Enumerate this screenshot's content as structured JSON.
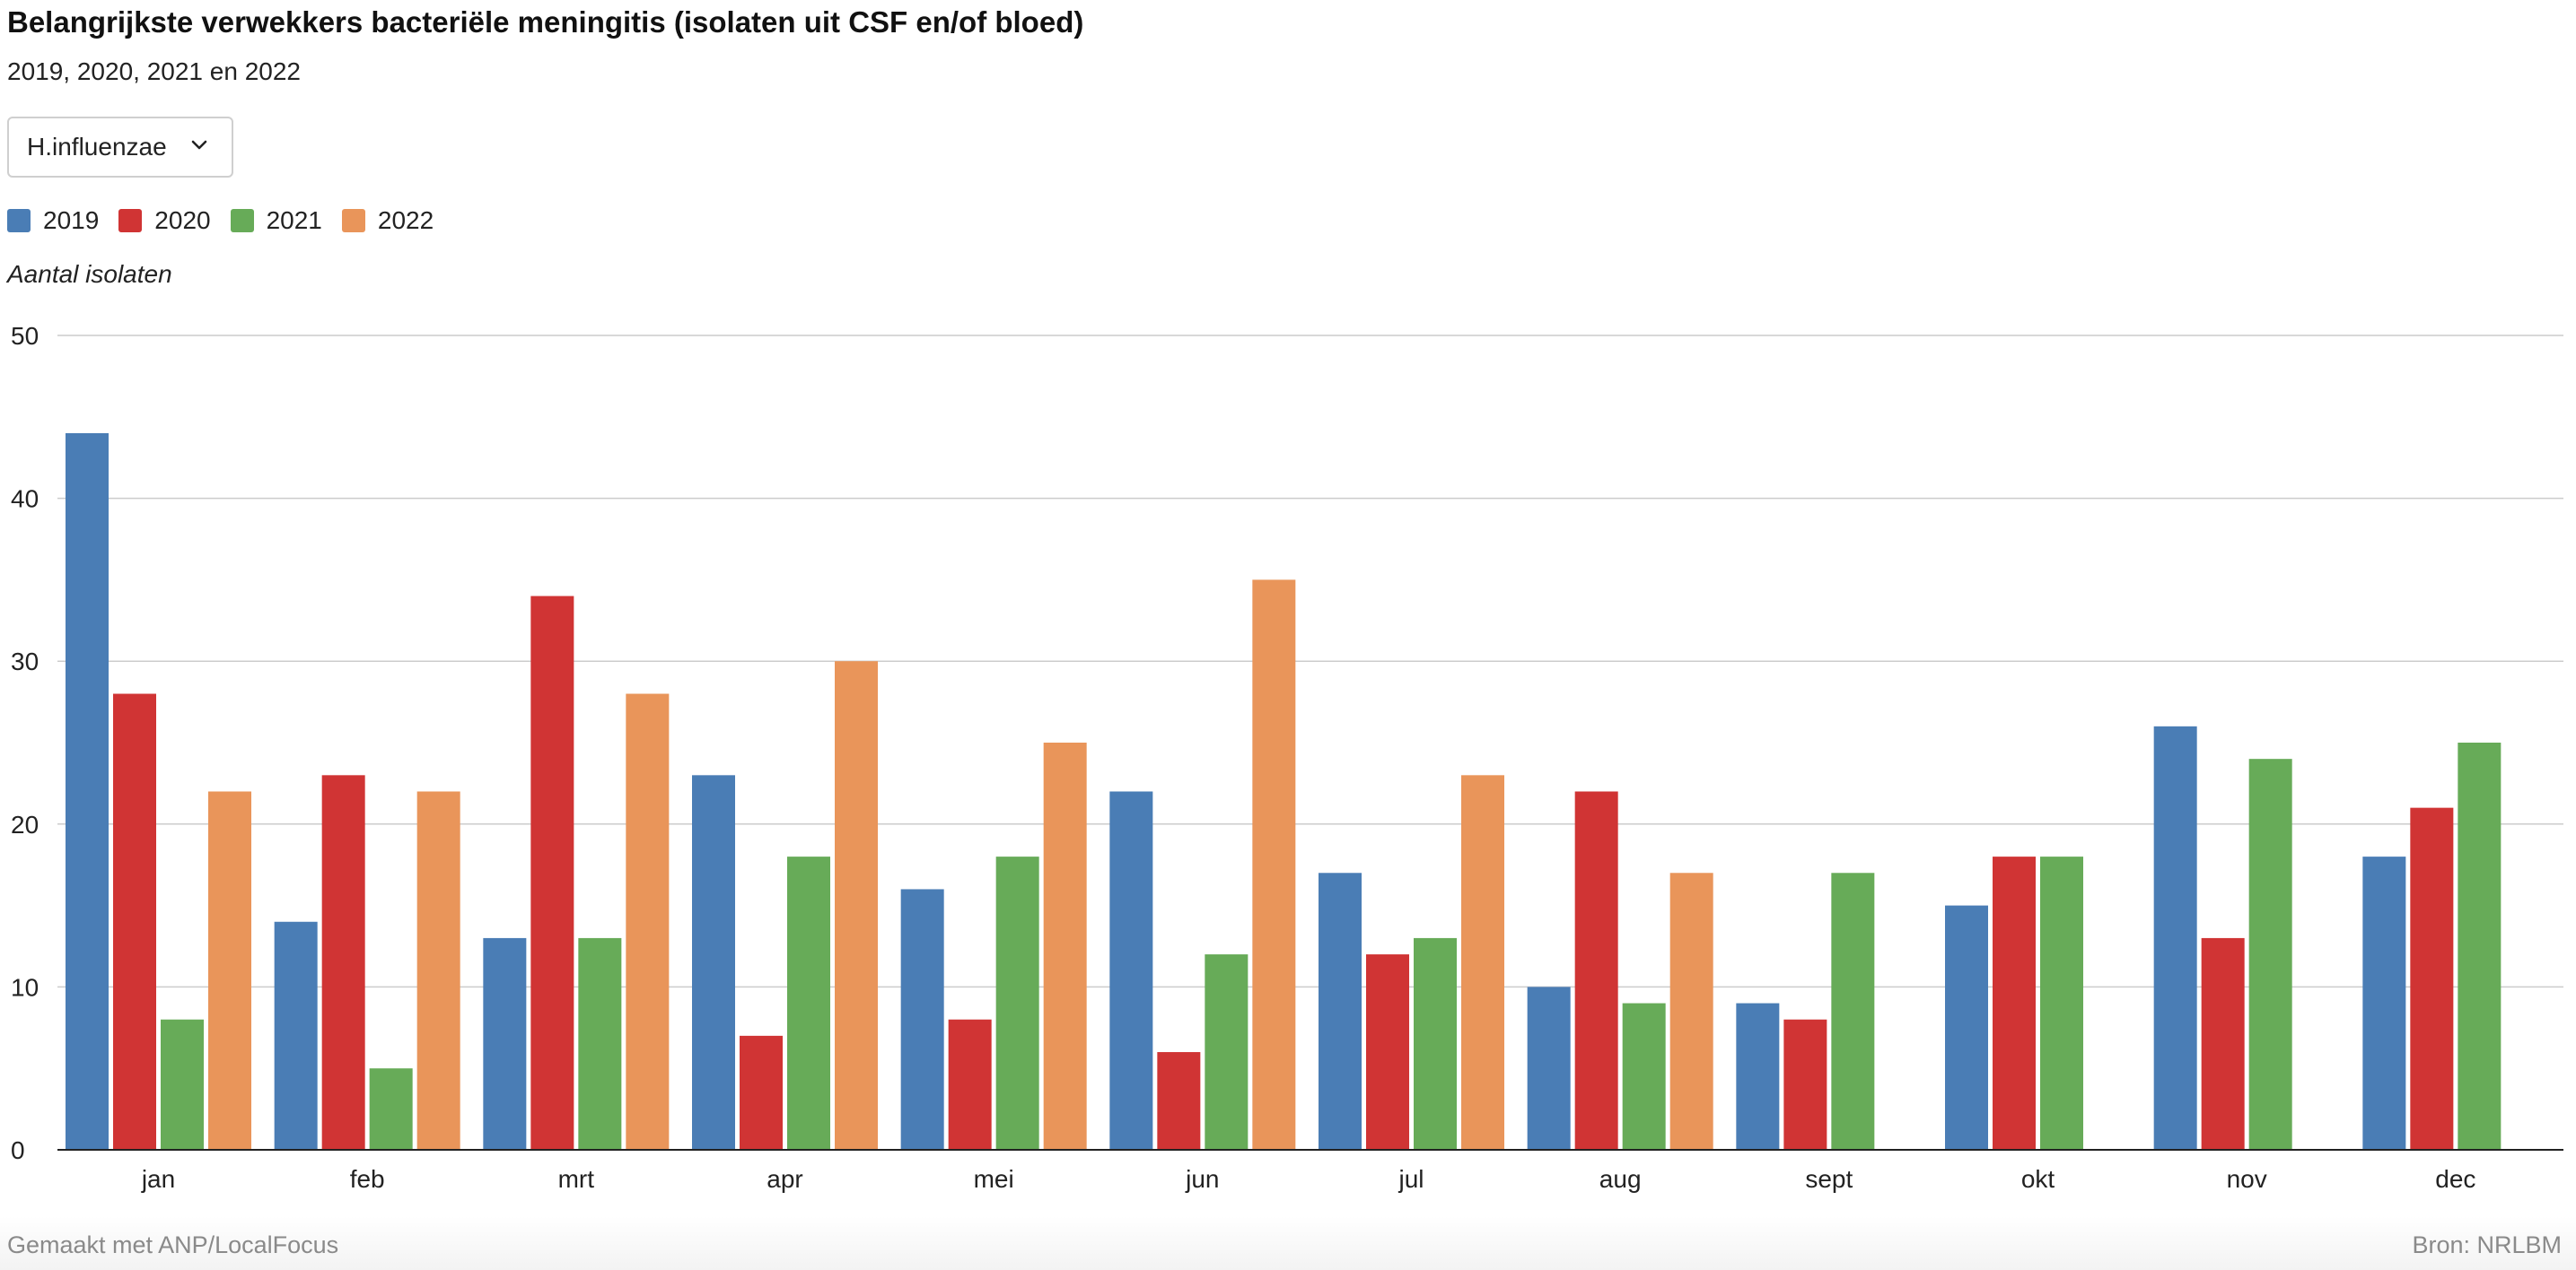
{
  "header": {
    "title": "Belangrijkste verwekkers bacteriële meningitis (isolaten uit CSF en/of bloed)",
    "subtitle": "2019, 2020, 2021 en 2022"
  },
  "filter": {
    "selected": "H.influenzae",
    "icon": "chevron-down-icon"
  },
  "footer": {
    "credit": "Gemaakt met ANP/LocalFocus",
    "source": "Bron:  NRLBM"
  },
  "chart_data": {
    "type": "bar",
    "title": "Belangrijkste verwekkers bacteriële meningitis (isolaten uit CSF en/of bloed)",
    "subtitle": "2019, 2020, 2021 en 2022",
    "xlabel": "",
    "ylabel": "Aantal isolaten",
    "ylim": [
      0,
      50
    ],
    "yticks": [
      0,
      10,
      20,
      30,
      40,
      50
    ],
    "grid": true,
    "legend_position": "top-left",
    "categories": [
      "jan",
      "feb",
      "mrt",
      "apr",
      "mei",
      "jun",
      "jul",
      "aug",
      "sept",
      "okt",
      "nov",
      "dec"
    ],
    "series": [
      {
        "name": "2019",
        "color": "#4a7db5",
        "values": [
          44,
          14,
          13,
          23,
          16,
          22,
          17,
          10,
          9,
          15,
          26,
          18
        ]
      },
      {
        "name": "2020",
        "color": "#d03434",
        "values": [
          28,
          23,
          34,
          7,
          8,
          6,
          12,
          22,
          8,
          18,
          13,
          21
        ]
      },
      {
        "name": "2021",
        "color": "#67ab58",
        "values": [
          8,
          5,
          13,
          18,
          18,
          12,
          13,
          9,
          17,
          18,
          24,
          25
        ]
      },
      {
        "name": "2022",
        "color": "#e9955a",
        "values": [
          22,
          22,
          28,
          30,
          25,
          35,
          23,
          17,
          null,
          null,
          null,
          null
        ]
      }
    ]
  }
}
